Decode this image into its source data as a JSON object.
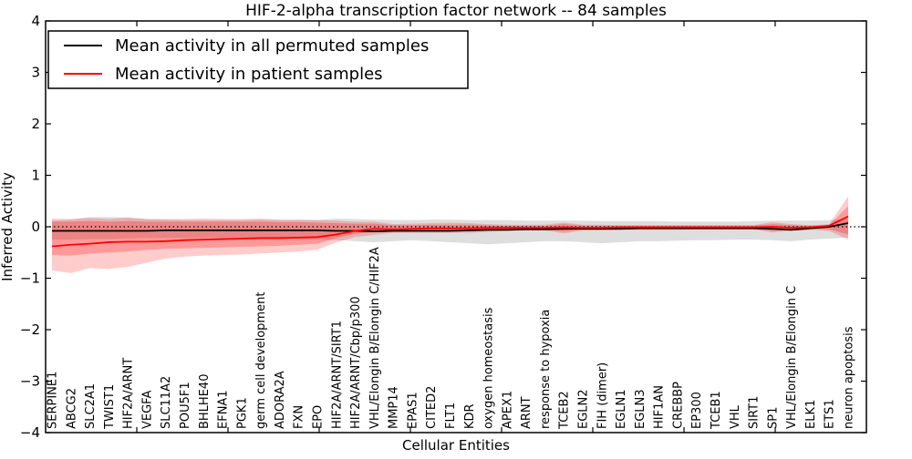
{
  "figure": {
    "background": "#ffffff",
    "frame_color": "#000000"
  },
  "chart_data": {
    "type": "line",
    "title": "HIF-2-alpha transcription factor network -- 84 samples",
    "xlabel": "Cellular Entities",
    "ylabel": "Inferred Activity",
    "ylim": [
      -4,
      4
    ],
    "grid": false,
    "legend_position": "upper left",
    "zero_reference_line": {
      "y": 0,
      "style": "dotted",
      "color": "#000000"
    },
    "yticks": [
      4,
      3,
      2,
      1,
      0,
      -1,
      -2,
      -3,
      -4
    ],
    "ytick_labels": [
      "4",
      "3",
      "2",
      "1",
      "0",
      "−1",
      "−2",
      "−3",
      "−4"
    ],
    "categories": [
      "SERPINE1",
      "ABCG2",
      "SLC2A1",
      "TWIST1",
      "HIF2A/ARNT",
      "VEGFA",
      "SLC11A2",
      "POU5F1",
      "BHLHE40",
      "EFNA1",
      "PGK1",
      "germ cell development",
      "ADORA2A",
      "FXN",
      "EPO",
      "HIF2A/ARNT/SIRT1",
      "HIF2A/ARNT/Cbp/p300",
      "VHL/Elongin B/Elongin C/HIF2A",
      "MMP14",
      "EPAS1",
      "CITED2",
      "FLT1",
      "KDR",
      "oxygen homeostasis",
      "APEX1",
      "ARNT",
      "response to hypoxia",
      "TCEB2",
      "EGLN2",
      "FIH (dimer)",
      "EGLN1",
      "EGLN3",
      "HIF1AN",
      "CREBBP",
      "EP300",
      "TCEB1",
      "VHL",
      "SIRT1",
      "SP1",
      "VHL/Elongin B/Elongin C",
      "ELK1",
      "ETS1",
      "neuron apoptosis"
    ],
    "series": [
      {
        "name": "Mean activity in all permuted samples",
        "color": "#000000",
        "values": [
          -0.08,
          -0.08,
          -0.08,
          -0.08,
          -0.08,
          -0.08,
          -0.07,
          -0.07,
          -0.07,
          -0.07,
          -0.07,
          -0.07,
          -0.07,
          -0.07,
          -0.07,
          -0.08,
          -0.08,
          -0.09,
          -0.08,
          -0.08,
          -0.08,
          -0.08,
          -0.07,
          -0.06,
          -0.06,
          -0.05,
          -0.05,
          -0.04,
          -0.04,
          -0.04,
          -0.04,
          -0.03,
          -0.03,
          -0.03,
          -0.03,
          -0.03,
          -0.03,
          -0.03,
          -0.04,
          -0.06,
          -0.03,
          0.0,
          0.07
        ]
      },
      {
        "name": "Mean activity in patient samples",
        "color": "#ff0000",
        "values": [
          -0.38,
          -0.35,
          -0.33,
          -0.3,
          -0.29,
          -0.29,
          -0.28,
          -0.26,
          -0.25,
          -0.24,
          -0.23,
          -0.22,
          -0.22,
          -0.21,
          -0.2,
          -0.15,
          -0.08,
          -0.04,
          -0.05,
          -0.04,
          -0.03,
          -0.03,
          -0.03,
          -0.02,
          -0.02,
          -0.02,
          -0.02,
          -0.01,
          -0.02,
          -0.02,
          -0.01,
          -0.01,
          -0.01,
          -0.01,
          -0.01,
          -0.01,
          -0.01,
          -0.01,
          0.0,
          -0.02,
          -0.01,
          0.02,
          0.2
        ]
      }
    ],
    "bands": [
      {
        "name": "permuted-spread-band",
        "color": "rgba(0,0,0,0.13)",
        "upper": [
          0.12,
          0.14,
          0.19,
          0.19,
          0.18,
          0.15,
          0.14,
          0.13,
          0.13,
          0.13,
          0.13,
          0.14,
          0.13,
          0.13,
          0.13,
          0.16,
          0.15,
          0.14,
          0.13,
          0.13,
          0.14,
          0.14,
          0.13,
          0.13,
          0.13,
          0.12,
          0.12,
          0.12,
          0.12,
          0.11,
          0.11,
          0.11,
          0.11,
          0.1,
          0.1,
          0.1,
          0.1,
          0.11,
          0.12,
          0.12,
          0.12,
          0.13,
          0.15
        ],
        "lower": [
          -0.25,
          -0.25,
          -0.24,
          -0.24,
          -0.23,
          -0.22,
          -0.22,
          -0.22,
          -0.22,
          -0.22,
          -0.22,
          -0.23,
          -0.23,
          -0.24,
          -0.25,
          -0.26,
          -0.28,
          -0.3,
          -0.28,
          -0.26,
          -0.28,
          -0.3,
          -0.32,
          -0.34,
          -0.32,
          -0.3,
          -0.28,
          -0.28,
          -0.3,
          -0.32,
          -0.3,
          -0.28,
          -0.28,
          -0.27,
          -0.26,
          -0.26,
          -0.25,
          -0.25,
          -0.26,
          -0.28,
          -0.25,
          -0.23,
          -0.21
        ]
      },
      {
        "name": "patient-spread-band-outer",
        "color": "rgba(255,0,0,0.20)",
        "upper": [
          0.16,
          0.15,
          0.17,
          0.15,
          0.18,
          0.15,
          0.15,
          0.15,
          0.16,
          0.15,
          0.15,
          0.16,
          0.14,
          0.14,
          0.13,
          0.12,
          0.1,
          0.1,
          0.05,
          0.06,
          0.07,
          0.08,
          0.07,
          0.05,
          0.04,
          0.04,
          0.04,
          0.08,
          0.04,
          0.04,
          0.03,
          0.03,
          0.03,
          0.03,
          0.03,
          0.03,
          0.03,
          0.03,
          0.09,
          0.05,
          0.03,
          0.05,
          0.59
        ],
        "lower": [
          -0.85,
          -0.9,
          -0.8,
          -0.82,
          -0.78,
          -0.7,
          -0.62,
          -0.58,
          -0.56,
          -0.55,
          -0.54,
          -0.52,
          -0.5,
          -0.48,
          -0.45,
          -0.3,
          -0.2,
          -0.16,
          -0.12,
          -0.12,
          -0.12,
          -0.12,
          -0.12,
          -0.1,
          -0.08,
          -0.07,
          -0.07,
          -0.13,
          -0.07,
          -0.07,
          -0.06,
          -0.06,
          -0.06,
          -0.06,
          -0.05,
          -0.05,
          -0.05,
          -0.05,
          -0.11,
          -0.08,
          -0.06,
          -0.08,
          -0.25
        ]
      },
      {
        "name": "patient-spread-band-inner",
        "color": "rgba(255,0,0,0.25)",
        "upper": [
          0.1,
          0.1,
          0.11,
          0.1,
          0.11,
          0.1,
          0.1,
          0.1,
          0.1,
          0.1,
          0.1,
          0.1,
          0.09,
          0.09,
          0.08,
          0.07,
          0.06,
          0.06,
          0.03,
          0.03,
          0.04,
          0.04,
          0.04,
          0.03,
          0.02,
          0.02,
          0.02,
          0.05,
          0.02,
          0.02,
          0.02,
          0.02,
          0.02,
          0.02,
          0.02,
          0.02,
          0.02,
          0.02,
          0.05,
          0.03,
          0.02,
          0.03,
          0.4
        ],
        "lower": [
          -0.55,
          -0.56,
          -0.52,
          -0.5,
          -0.48,
          -0.45,
          -0.43,
          -0.42,
          -0.41,
          -0.4,
          -0.39,
          -0.38,
          -0.37,
          -0.35,
          -0.33,
          -0.22,
          -0.14,
          -0.1,
          -0.09,
          -0.08,
          -0.08,
          -0.08,
          -0.08,
          -0.07,
          -0.05,
          -0.05,
          -0.05,
          -0.09,
          -0.05,
          -0.05,
          -0.04,
          -0.04,
          -0.04,
          -0.04,
          -0.04,
          -0.04,
          -0.04,
          -0.04,
          -0.08,
          -0.05,
          -0.04,
          -0.05,
          -0.15
        ]
      }
    ]
  },
  "legend": {
    "entries": [
      {
        "label": "Mean activity in all permuted samples",
        "color": "#000000"
      },
      {
        "label": "Mean activity in patient samples",
        "color": "#ff0000"
      }
    ]
  }
}
